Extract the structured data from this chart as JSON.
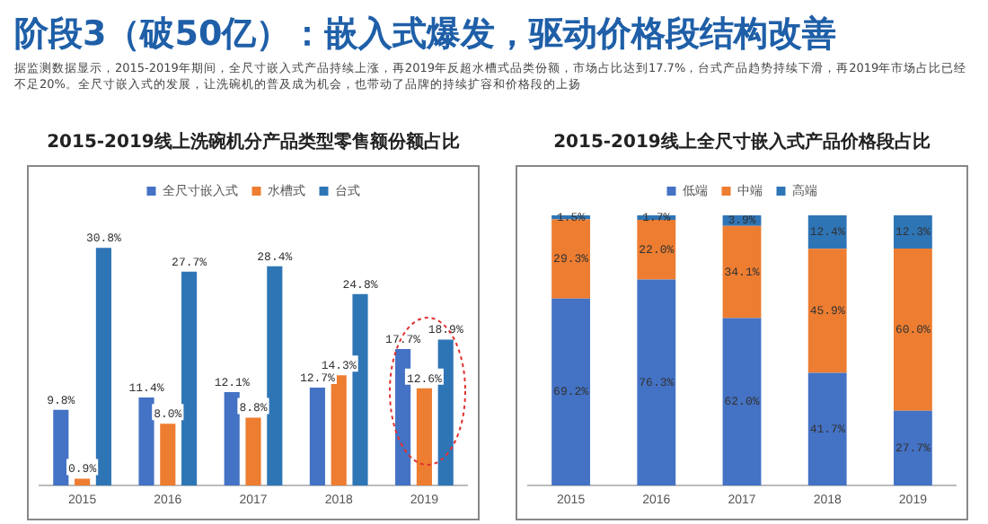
{
  "chart_data": [
    {
      "type": "other",
      "title": "阶段3（破50亿）：嵌入式爆发，驱动价格段结构改善",
      "subtitle": "据监测数据显示，2015-2019年期间，全尺寸嵌入式产品持续上涨，再2019年反超水槽式品类份额，市场占比达到17.7%，台式产品趋势持续下滑，再2019年市场占比已经不足20%。全尺寸嵌入式的发展，让洗碗机的普及成为机会，也带动了品牌的持续扩容和价格段的上扬"
    },
    {
      "type": "bar",
      "title": "2015-2019线上洗碗机分产品类型零售额份额占比",
      "categories": [
        "2015",
        "2016",
        "2017",
        "2018",
        "2019"
      ],
      "tick_labels": "x",
      "grid": false,
      "legend": "top",
      "series": [
        {
          "name": "全尺寸嵌入式",
          "color": "#4472c4",
          "values": [
            9.8,
            11.4,
            12.1,
            12.7,
            17.7
          ],
          "value_labels": [
            "9.8%",
            "11.4%",
            "12.1%",
            "12.7%",
            "17.7%"
          ]
        },
        {
          "name": "水槽式",
          "color": "#ed7d31",
          "values": [
            0.9,
            8.0,
            8.8,
            14.3,
            12.6
          ],
          "value_labels": [
            "0.9%",
            "8.0%",
            "8.8%",
            "14.3%",
            "12.6%"
          ]
        },
        {
          "name": "台式",
          "color": "#2e75b6",
          "values": [
            30.8,
            27.7,
            28.4,
            24.8,
            18.9
          ],
          "value_labels": [
            "30.8%",
            "27.7%",
            "28.4%",
            "24.8%",
            "18.9%"
          ]
        }
      ]
    },
    {
      "type": "bar",
      "title": "2015-2019线上全尺寸嵌入式产品价格段占比",
      "categories": [
        "2015",
        "2016",
        "2017",
        "2018",
        "2019"
      ],
      "stacked": true,
      "ylim": [
        0,
        100
      ],
      "tick_labels": "x",
      "grid": false,
      "legend": "top",
      "series": [
        {
          "name": "低端",
          "color": "#4472c4",
          "values": [
            69.2,
            76.3,
            62.0,
            41.7,
            27.7
          ],
          "value_labels": [
            "69.2%",
            "76.3%",
            "62.0%",
            "41.7%",
            "27.7%"
          ]
        },
        {
          "name": "中端",
          "color": "#ed7d31",
          "values": [
            29.3,
            22.0,
            34.1,
            45.9,
            60.0
          ],
          "value_labels": [
            "29.3%",
            "22.0%",
            "34.1%",
            "45.9%",
            "60.0%"
          ]
        },
        {
          "name": "高端",
          "color": "#2e75b6",
          "values": [
            1.5,
            1.7,
            3.9,
            12.4,
            12.3
          ],
          "value_labels": [
            "1.5%",
            "1.7%",
            "3.9%",
            "12.4%",
            "12.3%"
          ]
        }
      ]
    }
  ]
}
